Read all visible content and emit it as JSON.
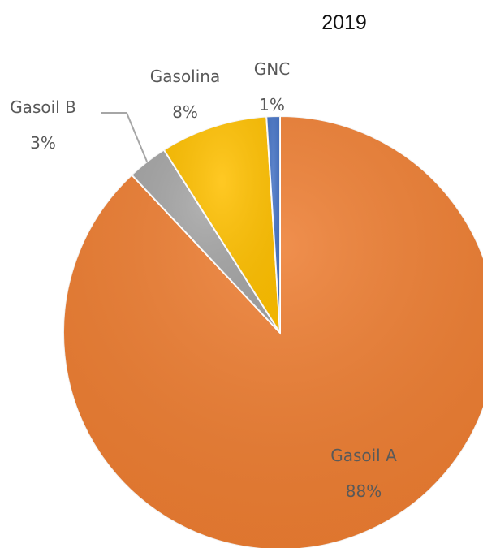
{
  "chart_data": {
    "type": "pie",
    "title": "2019",
    "start_angle_deg": 0,
    "direction": "clockwise",
    "legend": "none",
    "slices": [
      {
        "name": "Gasoil A",
        "value": 88,
        "label": "88%",
        "color": "#ED7D31"
      },
      {
        "name": "Gasoil B",
        "value": 3,
        "label": "3%",
        "color": "#A5A5A5"
      },
      {
        "name": "Gasolina",
        "value": 8,
        "label": "8%",
        "color": "#FFC000"
      },
      {
        "name": "GNC",
        "value": 1,
        "label": "1%",
        "color": "#4472C4"
      }
    ]
  }
}
